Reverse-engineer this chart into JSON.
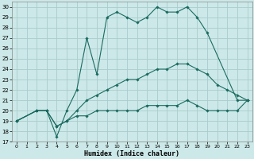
{
  "xlabel": "Humidex (Indice chaleur)",
  "background_color": "#cce8e8",
  "grid_color": "#aacccc",
  "line_color": "#1a6b60",
  "xlim": [
    -0.5,
    23.5
  ],
  "ylim": [
    17,
    30.5
  ],
  "xticks": [
    0,
    1,
    2,
    3,
    4,
    5,
    6,
    7,
    8,
    9,
    10,
    11,
    12,
    13,
    14,
    15,
    16,
    17,
    18,
    19,
    20,
    21,
    22,
    23
  ],
  "yticks": [
    17,
    18,
    19,
    20,
    21,
    22,
    23,
    24,
    25,
    26,
    27,
    28,
    29,
    30
  ],
  "series": [
    {
      "x": [
        0,
        2,
        3,
        4,
        5,
        6,
        7,
        8,
        9,
        10,
        11,
        12,
        13,
        14,
        15,
        16,
        17,
        18,
        19,
        22,
        23
      ],
      "y": [
        19,
        20,
        20,
        17.5,
        20,
        22,
        27,
        23.5,
        29,
        29.5,
        29,
        28.5,
        29,
        30,
        29.5,
        29.5,
        30,
        29,
        27.5,
        21,
        21
      ]
    },
    {
      "x": [
        0,
        2,
        3,
        4,
        5,
        6,
        7,
        8,
        9,
        10,
        11,
        12,
        13,
        14,
        15,
        16,
        17,
        18,
        19,
        20,
        21,
        22,
        23
      ],
      "y": [
        19,
        20,
        20,
        18.5,
        19,
        20,
        21,
        21.5,
        22,
        22.5,
        23,
        23,
        23.5,
        24,
        24,
        24.5,
        24.5,
        24,
        23.5,
        22.5,
        22,
        21.5,
        21
      ]
    },
    {
      "x": [
        0,
        2,
        3,
        4,
        5,
        6,
        7,
        8,
        9,
        10,
        11,
        12,
        13,
        14,
        15,
        16,
        17,
        18,
        19,
        20,
        21,
        22,
        23
      ],
      "y": [
        19,
        20,
        20,
        18.5,
        19,
        19.5,
        19.5,
        20,
        20,
        20,
        20,
        20,
        20.5,
        20.5,
        20.5,
        20.5,
        21,
        20.5,
        20,
        20,
        20,
        20,
        21
      ]
    }
  ]
}
